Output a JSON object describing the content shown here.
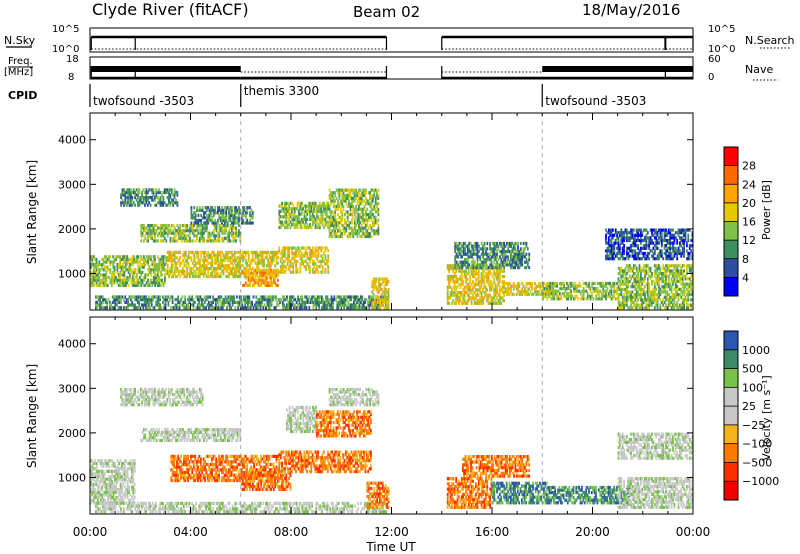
{
  "header": {
    "station": "Clyde River (fitACF)",
    "beam": "Beam 02",
    "date": "18/May/2016"
  },
  "params": {
    "nsky_label": "N.Sky",
    "nsearch_label": "N.Search",
    "nsky_ticks": [
      "10^5",
      "10^0"
    ],
    "nsearch_ticks": [
      "10^5",
      "10^0"
    ],
    "freq_label_1": "Freq.",
    "freq_label_2": "[MHz]",
    "freq_ticks": [
      "18",
      "8"
    ],
    "nave_label": "Nave",
    "nave_ticks": [
      "60",
      "0"
    ],
    "cpid_label": "CPID",
    "cpid_segments": [
      {
        "start": 0.0,
        "end": 6.0,
        "label": "twofsound -3503"
      },
      {
        "start": 6.0,
        "end": 18.0,
        "label": "themis 3300"
      },
      {
        "start": 18.0,
        "end": 24.0,
        "label": "twofsound -3503"
      }
    ]
  },
  "colorbars": {
    "power": {
      "label": "Power [dB]",
      "ticks": [
        "28",
        "24",
        "20",
        "16",
        "12",
        "8",
        "4"
      ],
      "colors": [
        "#ff0000",
        "#ff6a00",
        "#ffa500",
        "#e6c800",
        "#7fc247",
        "#3d8f5e",
        "#2e4f9e",
        "#0000ee"
      ]
    },
    "velocity": {
      "label": "Velocity [m s⁻¹]",
      "ticks": [
        "1000",
        "500",
        "100",
        "25",
        "−25",
        "−100",
        "−500",
        "−1000"
      ],
      "colors": [
        "#2b57b0",
        "#3c8a6a",
        "#79c24a",
        "#c8c8c8",
        "#c8c8c8",
        "#f5b21f",
        "#ff7800",
        "#ff3000",
        "#ee0000"
      ]
    }
  },
  "axes": {
    "ylabel": "Slant Range [km]",
    "xlabel": "Time UT",
    "yticks": [
      "1000",
      "2000",
      "3000",
      "4000"
    ],
    "xticks": [
      "00:00",
      "04:00",
      "08:00",
      "12:00",
      "16:00",
      "20:00",
      "00:00"
    ]
  },
  "chart_data": [
    {
      "type": "heatmap",
      "name": "power",
      "ylabel": "Slant Range [km]",
      "xlim": [
        0,
        24
      ],
      "ylim": [
        180,
        4600
      ],
      "data_gap_hours": [
        11.8,
        14.0
      ],
      "scatter_regions": [
        {
          "t0": 0.0,
          "t1": 3.0,
          "r0": 700,
          "r1": 1400,
          "level": 3
        },
        {
          "t0": 0.2,
          "t1": 11.8,
          "r0": 200,
          "r1": 500,
          "level": 2
        },
        {
          "t0": 1.2,
          "t1": 3.5,
          "r0": 2500,
          "r1": 2900,
          "level": 2
        },
        {
          "t0": 2.0,
          "t1": 6.0,
          "r0": 1700,
          "r1": 2100,
          "level": 3
        },
        {
          "t0": 3.0,
          "t1": 7.5,
          "r0": 900,
          "r1": 1500,
          "level": 4
        },
        {
          "t0": 4.0,
          "t1": 6.5,
          "r0": 2100,
          "r1": 2500,
          "level": 2
        },
        {
          "t0": 6.0,
          "t1": 7.5,
          "r0": 700,
          "r1": 1100,
          "level": 5
        },
        {
          "t0": 7.5,
          "t1": 9.5,
          "r0": 1000,
          "r1": 1600,
          "level": 4
        },
        {
          "t0": 7.5,
          "t1": 9.5,
          "r0": 2000,
          "r1": 2600,
          "level": 3
        },
        {
          "t0": 9.5,
          "t1": 11.5,
          "r0": 1800,
          "r1": 2900,
          "level": 3
        },
        {
          "t0": 11.2,
          "t1": 11.9,
          "r0": 200,
          "r1": 900,
          "level": 4
        },
        {
          "t0": 14.2,
          "t1": 16.5,
          "r0": 300,
          "r1": 1200,
          "level": 4
        },
        {
          "t0": 14.5,
          "t1": 17.5,
          "r0": 1100,
          "r1": 1700,
          "level": 2
        },
        {
          "t0": 16.5,
          "t1": 18.5,
          "r0": 500,
          "r1": 800,
          "level": 4
        },
        {
          "t0": 18.0,
          "t1": 21.0,
          "r0": 400,
          "r1": 800,
          "level": 3
        },
        {
          "t0": 21.0,
          "t1": 24.0,
          "r0": 200,
          "r1": 1200,
          "level": 3
        },
        {
          "t0": 20.5,
          "t1": 24.0,
          "r0": 1300,
          "r1": 2000,
          "level": 1
        }
      ]
    },
    {
      "type": "heatmap",
      "name": "velocity",
      "ylabel": "Slant Range [km]",
      "xlim": [
        0,
        24
      ],
      "ylim": [
        180,
        4600
      ],
      "data_gap_hours": [
        11.8,
        14.0
      ],
      "scatter_regions": [
        {
          "t0": 0.0,
          "t1": 1.8,
          "r0": 400,
          "r1": 1400,
          "level": 3
        },
        {
          "t0": 0.2,
          "t1": 11.8,
          "r0": 200,
          "r1": 450,
          "level": 3
        },
        {
          "t0": 1.2,
          "t1": 4.5,
          "r0": 2600,
          "r1": 3000,
          "level": 3
        },
        {
          "t0": 2.0,
          "t1": 6.0,
          "r0": 1800,
          "r1": 2100,
          "level": 3
        },
        {
          "t0": 3.2,
          "t1": 7.5,
          "r0": 900,
          "r1": 1500,
          "level": 6
        },
        {
          "t0": 6.0,
          "t1": 8.0,
          "r0": 700,
          "r1": 1200,
          "level": 6
        },
        {
          "t0": 7.5,
          "t1": 11.2,
          "r0": 1100,
          "r1": 1600,
          "level": 6
        },
        {
          "t0": 7.8,
          "t1": 9.0,
          "r0": 2000,
          "r1": 2600,
          "level": 3
        },
        {
          "t0": 9.0,
          "t1": 11.2,
          "r0": 1900,
          "r1": 2500,
          "level": 6
        },
        {
          "t0": 9.5,
          "t1": 11.5,
          "r0": 2600,
          "r1": 3000,
          "level": 3
        },
        {
          "t0": 11.0,
          "t1": 11.9,
          "r0": 300,
          "r1": 900,
          "level": 6
        },
        {
          "t0": 14.2,
          "t1": 16.0,
          "r0": 300,
          "r1": 1000,
          "level": 6
        },
        {
          "t0": 14.8,
          "t1": 17.5,
          "r0": 1000,
          "r1": 1500,
          "level": 6
        },
        {
          "t0": 16.0,
          "t1": 18.2,
          "r0": 400,
          "r1": 900,
          "level": 1
        },
        {
          "t0": 18.2,
          "t1": 21.5,
          "r0": 400,
          "r1": 800,
          "level": 1
        },
        {
          "t0": 21.0,
          "t1": 24.0,
          "r0": 300,
          "r1": 1000,
          "level": 3
        },
        {
          "t0": 21.0,
          "t1": 24.0,
          "r0": 1400,
          "r1": 2000,
          "level": 3
        }
      ]
    }
  ]
}
